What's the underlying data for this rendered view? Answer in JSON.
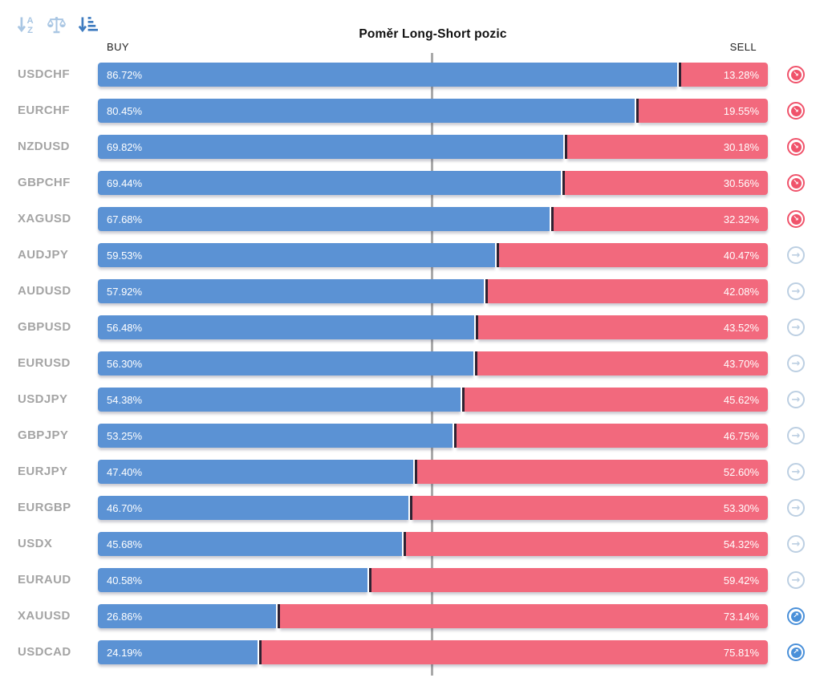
{
  "toolbar": {
    "sort_alpha_label": "sort alphabetically",
    "sort_balance_label": "sort balanced",
    "sort_amount_label": "sort by ratio",
    "active_icon": "sort-amount",
    "inactive_color": "#a9c6e3",
    "active_color": "#3f7cc0"
  },
  "header": {
    "title": "Poměr Long-Short pozic",
    "buy_label": "BUY",
    "sell_label": "SELL"
  },
  "colors": {
    "buy_bar": "#5b92d4",
    "sell_bar": "#f2697d",
    "bar_divider": "#2d2130",
    "pair_label": "#a4a4a4",
    "center_line": "#a9a9a9",
    "trend_down": "#f0536b",
    "trend_flat": "#bccfe2",
    "trend_up": "#4a90d9"
  },
  "chart_data": {
    "type": "bar",
    "orientation": "horizontal-stacked",
    "title": "Poměr Long-Short pozic",
    "xlim": [
      0,
      100
    ],
    "center_line_pct": 50,
    "legend": [
      "BUY",
      "SELL"
    ],
    "categories": [
      "USDCHF",
      "EURCHF",
      "NZDUSD",
      "GBPCHF",
      "XAGUSD",
      "AUDJPY",
      "AUDUSD",
      "GBPUSD",
      "EURUSD",
      "USDJPY",
      "GBPJPY",
      "EURJPY",
      "EURGBP",
      "USDX",
      "EURAUD",
      "XAUUSD",
      "USDCAD"
    ],
    "series": [
      {
        "name": "BUY",
        "values": [
          86.72,
          80.45,
          69.82,
          69.44,
          67.68,
          59.53,
          57.92,
          56.48,
          56.3,
          54.38,
          53.25,
          47.4,
          46.7,
          45.68,
          40.58,
          26.86,
          24.19
        ]
      },
      {
        "name": "SELL",
        "values": [
          13.28,
          19.55,
          30.18,
          30.56,
          32.32,
          40.47,
          42.08,
          43.52,
          43.7,
          45.62,
          46.75,
          52.6,
          53.3,
          54.32,
          59.42,
          73.14,
          75.81
        ]
      }
    ],
    "rows": [
      {
        "pair": "USDCHF",
        "buy": 86.72,
        "buy_label": "86.72%",
        "sell": 13.28,
        "sell_label": "13.28%",
        "trend": "down"
      },
      {
        "pair": "EURCHF",
        "buy": 80.45,
        "buy_label": "80.45%",
        "sell": 19.55,
        "sell_label": "19.55%",
        "trend": "down"
      },
      {
        "pair": "NZDUSD",
        "buy": 69.82,
        "buy_label": "69.82%",
        "sell": 30.18,
        "sell_label": "30.18%",
        "trend": "down"
      },
      {
        "pair": "GBPCHF",
        "buy": 69.44,
        "buy_label": "69.44%",
        "sell": 30.56,
        "sell_label": "30.56%",
        "trend": "down"
      },
      {
        "pair": "XAGUSD",
        "buy": 67.68,
        "buy_label": "67.68%",
        "sell": 32.32,
        "sell_label": "32.32%",
        "trend": "down"
      },
      {
        "pair": "AUDJPY",
        "buy": 59.53,
        "buy_label": "59.53%",
        "sell": 40.47,
        "sell_label": "40.47%",
        "trend": "flat"
      },
      {
        "pair": "AUDUSD",
        "buy": 57.92,
        "buy_label": "57.92%",
        "sell": 42.08,
        "sell_label": "42.08%",
        "trend": "flat"
      },
      {
        "pair": "GBPUSD",
        "buy": 56.48,
        "buy_label": "56.48%",
        "sell": 43.52,
        "sell_label": "43.52%",
        "trend": "flat"
      },
      {
        "pair": "EURUSD",
        "buy": 56.3,
        "buy_label": "56.30%",
        "sell": 43.7,
        "sell_label": "43.70%",
        "trend": "flat"
      },
      {
        "pair": "USDJPY",
        "buy": 54.38,
        "buy_label": "54.38%",
        "sell": 45.62,
        "sell_label": "45.62%",
        "trend": "flat"
      },
      {
        "pair": "GBPJPY",
        "buy": 53.25,
        "buy_label": "53.25%",
        "sell": 46.75,
        "sell_label": "46.75%",
        "trend": "flat"
      },
      {
        "pair": "EURJPY",
        "buy": 47.4,
        "buy_label": "47.40%",
        "sell": 52.6,
        "sell_label": "52.60%",
        "trend": "flat"
      },
      {
        "pair": "EURGBP",
        "buy": 46.7,
        "buy_label": "46.70%",
        "sell": 53.3,
        "sell_label": "53.30%",
        "trend": "flat"
      },
      {
        "pair": "USDX",
        "buy": 45.68,
        "buy_label": "45.68%",
        "sell": 54.32,
        "sell_label": "54.32%",
        "trend": "flat"
      },
      {
        "pair": "EURAUD",
        "buy": 40.58,
        "buy_label": "40.58%",
        "sell": 59.42,
        "sell_label": "59.42%",
        "trend": "flat"
      },
      {
        "pair": "XAUUSD",
        "buy": 26.86,
        "buy_label": "26.86%",
        "sell": 73.14,
        "sell_label": "73.14%",
        "trend": "up"
      },
      {
        "pair": "USDCAD",
        "buy": 24.19,
        "buy_label": "24.19%",
        "sell": 75.81,
        "sell_label": "75.81%",
        "trend": "up"
      }
    ],
    "trend_arrows": {
      "down": "↘",
      "flat": "→",
      "up": "↗"
    }
  }
}
